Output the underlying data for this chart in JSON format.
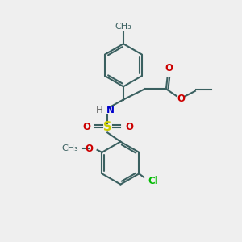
{
  "bg_color": "#efefef",
  "bond_color": "#3a6060",
  "bond_width": 1.5,
  "atom_colors": {
    "N": "#0000cc",
    "O": "#cc0000",
    "S": "#cccc00",
    "Cl": "#00bb00",
    "H": "#6a6a6a",
    "C": "#3a6060"
  },
  "font_size": 8.5,
  "figsize": [
    3.0,
    3.0
  ],
  "dpi": 100
}
